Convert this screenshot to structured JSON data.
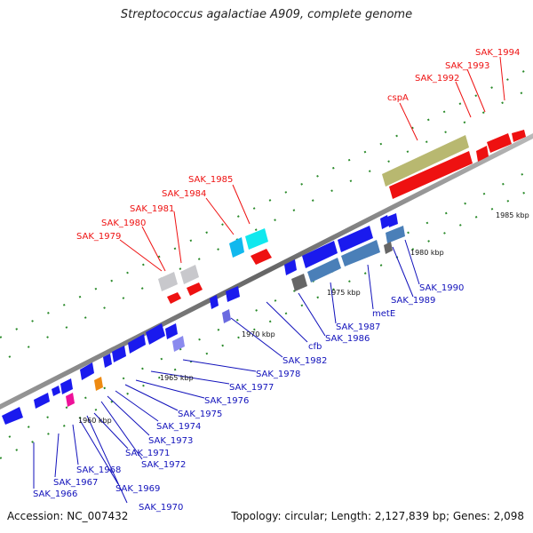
{
  "title": "Streptococcus agalactiae A909, complete genome",
  "footer": {
    "accession": "Accession: NC_007432",
    "summary": "Topology: circular; Length: 2,127,839 bp; Genes: 2,098"
  },
  "scale_labels": [
    "1960 kbp",
    "1965 kbp",
    "1970 kbp",
    "1975 kbp",
    "1980 kbp",
    "1985 kbp"
  ],
  "genes_top": [
    "SAK_1979",
    "SAK_1980",
    "SAK_1981",
    "SAK_1984",
    "SAK_1985",
    "cspA",
    "SAK_1992",
    "SAK_1993",
    "SAK_1994"
  ],
  "genes_bottom": [
    "SAK_1966",
    "SAK_1967",
    "SAK_1968",
    "SAK_1969",
    "SAK_1970",
    "SAK_1971",
    "SAK_1972",
    "SAK_1973",
    "SAK_1974",
    "SAK_1975",
    "SAK_1976",
    "SAK_1977",
    "SAK_1978",
    "SAK_1982",
    "cfb",
    "SAK_1986",
    "SAK_1987",
    "metE",
    "SAK_1989",
    "SAK_1990"
  ],
  "colors": {
    "red_gene": "#ee1111",
    "blue_gene": "#1a1aee",
    "steel_gene": "#4a7fb8",
    "cyan_gene": "#11e8ee",
    "olive_gene": "#b8b870",
    "grey_gene": "#c8c8cc",
    "backbone": "#888888"
  }
}
